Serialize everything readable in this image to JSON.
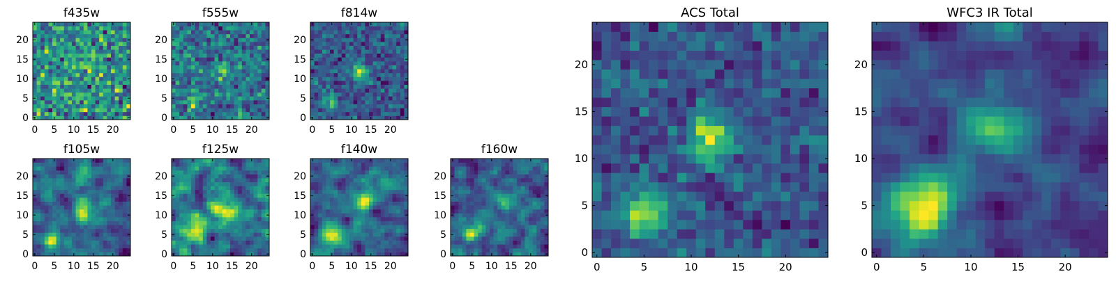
{
  "chart_data": [
    {
      "type": "heatmap",
      "title": "f435w",
      "colormap": "viridis",
      "grid_size": [
        25,
        25
      ],
      "xticks": [
        "0",
        "5",
        "10",
        "15",
        "20"
      ],
      "yticks": [
        "0",
        "5",
        "10",
        "15",
        "20"
      ],
      "xlim": [
        -0.5,
        24.5
      ],
      "ylim": [
        -0.5,
        24.5
      ],
      "noise": 0.55,
      "sources": [
        {
          "x": 12,
          "y": 12,
          "amp": 0.12,
          "sigma": 2.0
        },
        {
          "x": 5,
          "y": 4,
          "amp": 0.1,
          "sigma": 1.5
        }
      ]
    },
    {
      "type": "heatmap",
      "title": "f555w",
      "colormap": "viridis",
      "grid_size": [
        25,
        25
      ],
      "xticks": [
        "0",
        "5",
        "10",
        "15",
        "20"
      ],
      "yticks": [
        "0",
        "5",
        "10",
        "15",
        "20"
      ],
      "xlim": [
        -0.5,
        24.5
      ],
      "ylim": [
        -0.5,
        24.5
      ],
      "noise": 0.5,
      "sources": [
        {
          "x": 12,
          "y": 12,
          "amp": 0.3,
          "sigma": 1.5
        },
        {
          "x": 5,
          "y": 4,
          "amp": 0.35,
          "sigma": 1.5
        }
      ]
    },
    {
      "type": "heatmap",
      "title": "f814w",
      "colormap": "viridis",
      "grid_size": [
        25,
        25
      ],
      "xticks": [
        "0",
        "5",
        "10",
        "15",
        "20"
      ],
      "yticks": [
        "0",
        "5",
        "10",
        "15",
        "20"
      ],
      "xlim": [
        -0.5,
        24.5
      ],
      "ylim": [
        -0.5,
        24.5
      ],
      "noise": 0.4,
      "sources": [
        {
          "x": 12,
          "y": 12,
          "amp": 0.75,
          "sigma": 1.3
        },
        {
          "x": 5,
          "y": 4,
          "amp": 0.55,
          "sigma": 1.3
        }
      ]
    },
    {
      "type": "heatmap",
      "title": "f105w",
      "colormap": "viridis",
      "grid_size": [
        25,
        25
      ],
      "xticks": [
        "0",
        "5",
        "10",
        "15",
        "20"
      ],
      "yticks": [
        "0",
        "5",
        "10",
        "15",
        "20"
      ],
      "xlim": [
        -0.5,
        24.5
      ],
      "ylim": [
        -0.5,
        24.5
      ],
      "noise": 0.35,
      "smooth": 1,
      "sources": [
        {
          "x": 12,
          "y": 12,
          "amp": 0.6,
          "sigma": 2.0
        },
        {
          "x": 4,
          "y": 4,
          "amp": 0.55,
          "sigma": 1.8
        }
      ]
    },
    {
      "type": "heatmap",
      "title": "f125w",
      "colormap": "viridis",
      "grid_size": [
        25,
        25
      ],
      "xticks": [
        "0",
        "5",
        "10",
        "15",
        "20"
      ],
      "yticks": [
        "0",
        "5",
        "10",
        "15",
        "20"
      ],
      "xlim": [
        -0.5,
        24.5
      ],
      "ylim": [
        -0.5,
        24.5
      ],
      "noise": 0.35,
      "smooth": 1,
      "sources": [
        {
          "x": 13,
          "y": 11,
          "amp": 0.55,
          "sigma": 2.2
        },
        {
          "x": 5,
          "y": 6,
          "amp": 0.55,
          "sigma": 2.2
        }
      ]
    },
    {
      "type": "heatmap",
      "title": "f140w",
      "colormap": "viridis",
      "grid_size": [
        25,
        25
      ],
      "xticks": [
        "0",
        "5",
        "10",
        "15",
        "20"
      ],
      "yticks": [
        "0",
        "5",
        "10",
        "15",
        "20"
      ],
      "xlim": [
        -0.5,
        24.5
      ],
      "ylim": [
        -0.5,
        24.5
      ],
      "noise": 0.35,
      "smooth": 1,
      "sources": [
        {
          "x": 13,
          "y": 13,
          "amp": 0.55,
          "sigma": 2.0
        },
        {
          "x": 5,
          "y": 5,
          "amp": 0.65,
          "sigma": 2.0
        }
      ]
    },
    {
      "type": "heatmap",
      "title": "f160w",
      "colormap": "viridis",
      "grid_size": [
        25,
        25
      ],
      "xticks": [
        "0",
        "5",
        "10",
        "15",
        "20"
      ],
      "yticks": [
        "0",
        "5",
        "10",
        "15",
        "20"
      ],
      "xlim": [
        -0.5,
        24.5
      ],
      "ylim": [
        -0.5,
        24.5
      ],
      "noise": 0.4,
      "smooth": 1,
      "sources": [
        {
          "x": 13,
          "y": 13,
          "amp": 0.45,
          "sigma": 1.8
        },
        {
          "x": 5,
          "y": 5,
          "amp": 0.85,
          "sigma": 1.6
        }
      ]
    },
    {
      "type": "heatmap",
      "title": "ACS Total",
      "colormap": "viridis",
      "grid_size": [
        25,
        25
      ],
      "xticks": [
        "0",
        "5",
        "10",
        "15",
        "20"
      ],
      "yticks": [
        "0",
        "5",
        "10",
        "15",
        "20"
      ],
      "xlim": [
        -0.5,
        24.5
      ],
      "ylim": [
        -0.5,
        24.5
      ],
      "noise": 0.38,
      "sources": [
        {
          "x": 12,
          "y": 12,
          "amp": 0.85,
          "sigma": 1.6
        },
        {
          "x": 5,
          "y": 4.5,
          "amp": 0.85,
          "sigma": 1.6
        }
      ]
    },
    {
      "type": "heatmap",
      "title": "WFC3 IR Total",
      "colormap": "viridis",
      "grid_size": [
        25,
        25
      ],
      "xticks": [
        "0",
        "5",
        "10",
        "15",
        "20"
      ],
      "yticks": [
        "0",
        "5",
        "10",
        "15",
        "20"
      ],
      "xlim": [
        -0.5,
        24.5
      ],
      "ylim": [
        -0.5,
        24.5
      ],
      "noise": 0.28,
      "smooth": 1,
      "sources": [
        {
          "x": 12,
          "y": 13,
          "amp": 0.6,
          "sigma": 2.0
        },
        {
          "x": 5,
          "y": 5,
          "amp": 0.85,
          "sigma": 2.6
        }
      ]
    }
  ]
}
